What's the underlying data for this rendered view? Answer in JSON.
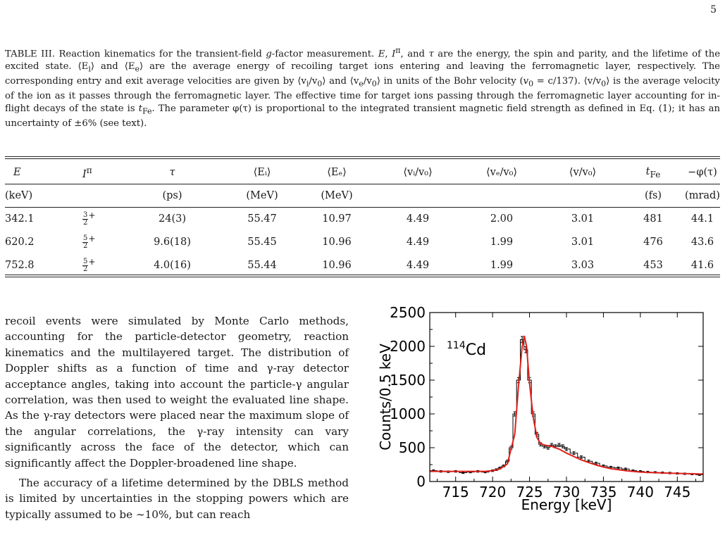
{
  "page_number": "5",
  "caption": {
    "lead": "TABLE III. Reaction kinematics for the transient-field ",
    "g": "g",
    "t1": "-factor measurement. ",
    "E": "E",
    "c1": ", ",
    "Ipi": "I",
    "pi_sup": "π",
    "c2": ", and ",
    "tau": "τ",
    "t2": " are the energy, the spin and parity, and the lifetime of the excited state. ",
    "Ei": "⟨E",
    "Ei_sub": "i",
    "close": "⟩",
    "and1": " and ",
    "Ee": "⟨E",
    "Ee_sub": "e",
    "t3": " are the average energy of recoiling target ions entering and leaving the ferromagnetic layer, respectively. The corresponding entry and exit average velocities are given by ",
    "vi": "⟨v",
    "vi_sub": "i",
    "v0": "/v",
    "v0_sub": "0",
    "and2": " and ",
    "ve": "⟨v",
    "ve_sub": "e",
    "t4": " in units of the Bohr velocity (",
    "bohr": "v",
    "bohr_sub": "0",
    "bohr_eq": " = c/137",
    "t5": "). ",
    "vavg": "⟨v/v",
    "vavg_sub": "0",
    "t6": " is the average velocity of the ion as it passes through the ferromagnetic layer. The effective time for target ions passing through the ferromagnetic layer accounting for in-flight decays of the state is ",
    "tfe": "t",
    "tfe_sub": "Fe",
    "t7": ". The parameter ",
    "phi": "φ(τ)",
    "t8": " is proportional to the integrated transient magnetic field strength as defined in Eq. (1); it has an uncertainty of ±6% (see text)."
  },
  "table": {
    "headers": [
      "E",
      "I",
      "τ",
      "⟨Eᵢ⟩",
      "⟨Eₑ⟩",
      "⟨vᵢ/v₀⟩",
      "⟨vₑ/v₀⟩",
      "⟨v/v₀⟩",
      "t",
      "−φ(τ)"
    ],
    "header_sup_pi": "π",
    "header_sub_fe": "Fe",
    "units": [
      "(keV)",
      "",
      "(ps)",
      "(MeV)",
      "(MeV)",
      "",
      "",
      "",
      "(fs)",
      "(mrad)"
    ],
    "rows": [
      {
        "E": "342.1",
        "spin_num": "3",
        "spin_den": "2",
        "parity": "+",
        "tau": "24(3)",
        "Ei": "55.47",
        "Ee": "10.97",
        "vi": "4.49",
        "ve": "2.00",
        "v": "3.01",
        "tfe": "481",
        "phi": "44.1"
      },
      {
        "E": "620.2",
        "spin_num": "5",
        "spin_den": "2",
        "parity": "+",
        "tau": "9.6(18)",
        "Ei": "55.45",
        "Ee": "10.96",
        "vi": "4.49",
        "ve": "1.99",
        "v": "3.01",
        "tfe": "476",
        "phi": "43.6"
      },
      {
        "E": "752.8",
        "spin_num": "5",
        "spin_den": "2",
        "parity": "+",
        "tau": "4.0(16)",
        "Ei": "55.44",
        "Ee": "10.96",
        "vi": "4.49",
        "ve": "1.99",
        "v": "3.03",
        "tfe": "453",
        "phi": "41.6"
      }
    ]
  },
  "body": {
    "p1": "recoil events were simulated by Monte Carlo methods, accounting for the particle-detector geometry, reaction kinematics and the multilayered target. The distribution of Doppler shifts as a function of time and γ-ray detector acceptance angles, taking into account the particle-γ angular correlation, was then used to weight the evaluated line shape. As the γ-ray detectors were placed near the maximum slope of the angular correlations, the γ-ray intensity can vary significantly across the face of the detector, which can significantly affect the Doppler-broadened line shape.",
    "p2": "The accuracy of a lifetime determined by the DBLS method is limited by uncertainties in the stopping powers which are typically assumed to be ∼10%, but can reach"
  },
  "chart_data": {
    "type": "line",
    "title": "",
    "annotation_mass": "114",
    "annotation_element": "Cd",
    "xlabel": "Energy [keV]",
    "ylabel": "Counts/0.5 keV",
    "xlim": [
      711.5,
      748.5
    ],
    "ylim": [
      0,
      2500
    ],
    "xticks": [
      715,
      720,
      725,
      730,
      735,
      740,
      745
    ],
    "yticks": [
      0,
      500,
      1000,
      1500,
      2000,
      2500
    ],
    "data_color": "#000000",
    "fit_color": "#e0201b",
    "series": [
      {
        "type": "histogram-with-errors",
        "x": [
          712,
          713,
          714,
          715,
          716,
          717,
          718,
          719,
          720,
          720.5,
          721,
          721.5,
          722,
          722.5,
          723,
          723.5,
          724,
          724.5,
          725,
          725.5,
          726,
          726.5,
          727,
          727.5,
          728,
          728.5,
          729,
          729.5,
          730,
          731,
          732,
          733,
          734,
          735,
          736,
          737,
          738,
          739,
          740,
          741,
          742,
          743,
          744,
          745,
          746,
          747,
          748
        ],
        "y": [
          160,
          150,
          145,
          150,
          130,
          140,
          150,
          140,
          160,
          175,
          200,
          230,
          300,
          500,
          1000,
          1500,
          2100,
          1950,
          1500,
          1000,
          700,
          550,
          520,
          500,
          540,
          520,
          540,
          520,
          480,
          420,
          360,
          300,
          270,
          230,
          210,
          200,
          185,
          160,
          150,
          140,
          135,
          130,
          125,
          120,
          115,
          110,
          100
        ]
      },
      {
        "type": "fit",
        "x": [
          711.5,
          714,
          717,
          719,
          720,
          721,
          722,
          723,
          723.5,
          724,
          724.3,
          724.6,
          725,
          725.5,
          726,
          726.5,
          727,
          728,
          729,
          730,
          731,
          732,
          733,
          734,
          735,
          736,
          738,
          740,
          742,
          745,
          748.5
        ],
        "y": [
          150,
          150,
          150,
          150,
          160,
          185,
          260,
          700,
          1400,
          2000,
          2150,
          2000,
          1450,
          950,
          650,
          560,
          540,
          520,
          480,
          420,
          370,
          320,
          280,
          245,
          215,
          190,
          160,
          140,
          130,
          120,
          110
        ]
      }
    ]
  }
}
